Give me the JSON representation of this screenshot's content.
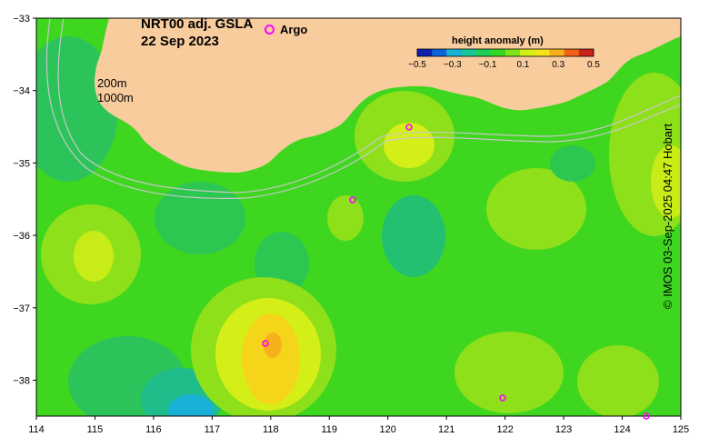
{
  "title": {
    "line1": "NRT00 adj. GSLA",
    "line2": "22 Sep 2023"
  },
  "legend": {
    "argo_label": "Argo",
    "argo_color": "#ff00ff"
  },
  "contours": {
    "label1": "200m",
    "label2": "1000m"
  },
  "colorbar": {
    "title": "height anomaly (m)",
    "ticks": [
      "−0.5",
      "−0.3",
      "−0.1",
      "0.1",
      "0.3",
      "0.5"
    ],
    "colors": [
      "#0b1fb0",
      "#0f63d9",
      "#1ab1d6",
      "#17c79a",
      "#1fcf55",
      "#34d81e",
      "#7fe21a",
      "#d4ef17",
      "#f5e21a",
      "#f7b01c",
      "#ef6217",
      "#c8221a"
    ]
  },
  "axes": {
    "x_ticks": [
      "114",
      "115",
      "116",
      "117",
      "118",
      "119",
      "120",
      "121",
      "122",
      "123",
      "124",
      "125"
    ],
    "y_ticks": [
      "−33",
      "−34",
      "−35",
      "−36",
      "−37",
      "−38"
    ]
  },
  "credit": "© IMOS 03-Sep-2025 04:47 Hobart",
  "colors": {
    "land": "#f9cc9e",
    "ocean_base": "#3fd620",
    "contour_line": "#c8c8c8"
  }
}
